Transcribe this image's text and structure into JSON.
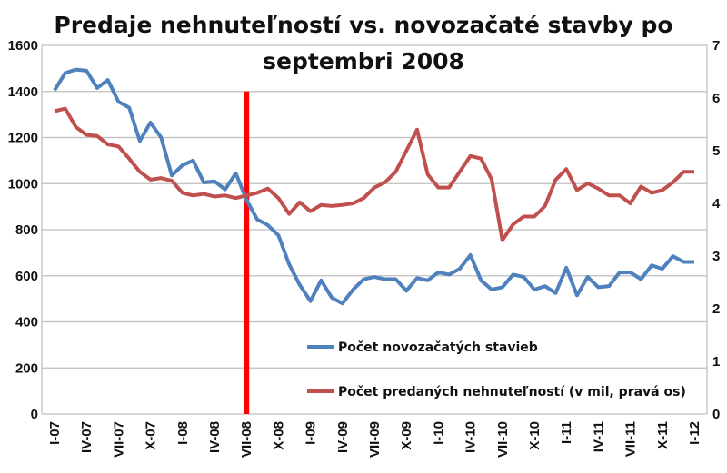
{
  "chart_data": {
    "type": "line",
    "title": [
      "Predaje nehnuteľností vs. novozačaté stavby  po",
      "septembri 2008"
    ],
    "xlabel": "",
    "ylabel": "",
    "ylim": [
      0,
      1600
    ],
    "y2lim": [
      0,
      7
    ],
    "yticks": [
      "0",
      "200",
      "400",
      "600",
      "800",
      "1000",
      "1200",
      "1400",
      "1600"
    ],
    "y2ticks": [
      "0",
      "1",
      "2",
      "3",
      "4",
      "5",
      "6",
      "7"
    ],
    "xticks": [
      "I-07",
      "IV-07",
      "VII-07",
      "X-07",
      "I-08",
      "IV-08",
      "VII-08",
      "X-08",
      "I-09",
      "IV-09",
      "VII-09",
      "X-09",
      "I-10",
      "IV-10",
      "VII-10",
      "X-10",
      "I-11",
      "IV-11",
      "VII-11",
      "X-11",
      "I-12"
    ],
    "grid": true,
    "marker_month_index": 18,
    "marker_color": "#ff0000",
    "series": [
      {
        "name": "Počet novozačatých stavieb",
        "axis": "left",
        "color": "#4f81bd",
        "values": [
          1405,
          1480,
          1495,
          1490,
          1415,
          1450,
          1355,
          1330,
          1185,
          1265,
          1200,
          1035,
          1080,
          1100,
          1005,
          1010,
          975,
          1045,
          930,
          845,
          820,
          775,
          650,
          560,
          490,
          580,
          505,
          480,
          540,
          585,
          595,
          585,
          585,
          535,
          590,
          580,
          615,
          605,
          630,
          690,
          580,
          540,
          550,
          605,
          595,
          540,
          555,
          525,
          635,
          515,
          595,
          550,
          555,
          615,
          615,
          585,
          645,
          630,
          685,
          660,
          660
        ]
      },
      {
        "name": "Počet predaných nehnuteľností (v mil, pravá os)",
        "axis": "right",
        "color": "#c0504d",
        "values": [
          5.75,
          5.8,
          5.45,
          5.3,
          5.28,
          5.12,
          5.08,
          4.85,
          4.6,
          4.45,
          4.48,
          4.43,
          4.2,
          4.15,
          4.18,
          4.13,
          4.15,
          4.1,
          4.15,
          4.2,
          4.28,
          4.1,
          3.8,
          4.02,
          3.85,
          3.97,
          3.95,
          3.97,
          4.0,
          4.1,
          4.3,
          4.4,
          4.6,
          5.0,
          5.4,
          4.55,
          4.3,
          4.3,
          4.6,
          4.9,
          4.85,
          4.45,
          3.3,
          3.6,
          3.75,
          3.75,
          3.95,
          4.45,
          4.65,
          4.25,
          4.38,
          4.28,
          4.15,
          4.15,
          4.0,
          4.32,
          4.2,
          4.25,
          4.4,
          4.6,
          4.6
        ]
      }
    ],
    "legend": "bottom-center inside"
  }
}
